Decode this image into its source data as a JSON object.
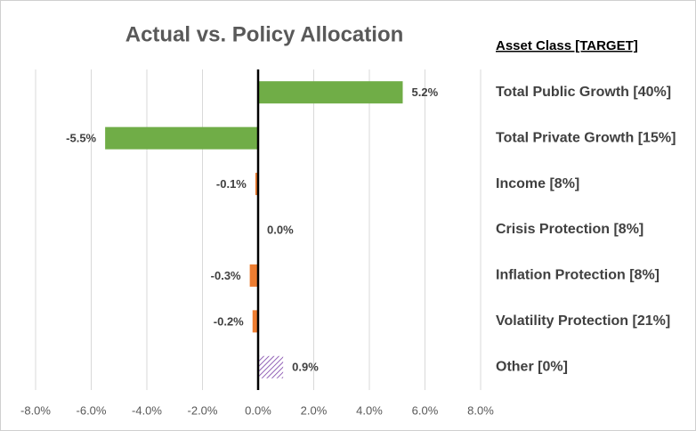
{
  "chart_data": {
    "type": "hbar",
    "title": "Actual vs. Policy Allocation",
    "legend_title": "Asset Class [TARGET]",
    "categories": [
      "Total Public Growth [40%]",
      "Total Private Growth [15%]",
      "Income [8%]",
      "Crisis Protection [8%]",
      "Inflation Protection [8%]",
      "Volatility Protection [21%]",
      "Other [0%]"
    ],
    "values": [
      5.2,
      -5.5,
      -0.1,
      0.0,
      -0.3,
      -0.2,
      0.9
    ],
    "value_labels": [
      "5.2%",
      "-5.5%",
      "-0.1%",
      "0.0%",
      "-0.3%",
      "-0.2%",
      "0.9%"
    ],
    "colors": [
      "#70ad47",
      "#70ad47",
      "#ed7d31",
      "#ed7d31",
      "#ed7d31",
      "#ed7d31",
      "#7030a0"
    ],
    "hatched": [
      false,
      false,
      false,
      false,
      false,
      false,
      true
    ],
    "xlim": [
      -8,
      8
    ],
    "xticks": [
      {
        "value": -8,
        "label": "-8.0%"
      },
      {
        "value": -6,
        "label": "-6.0%"
      },
      {
        "value": -4,
        "label": "-4.0%"
      },
      {
        "value": -2,
        "label": "-2.0%"
      },
      {
        "value": 0,
        "label": "0.0%"
      },
      {
        "value": 2,
        "label": "2.0%"
      },
      {
        "value": 4,
        "label": "4.0%"
      },
      {
        "value": 6,
        "label": "6.0%"
      },
      {
        "value": 8,
        "label": "8.0%"
      }
    ],
    "grid": true
  }
}
